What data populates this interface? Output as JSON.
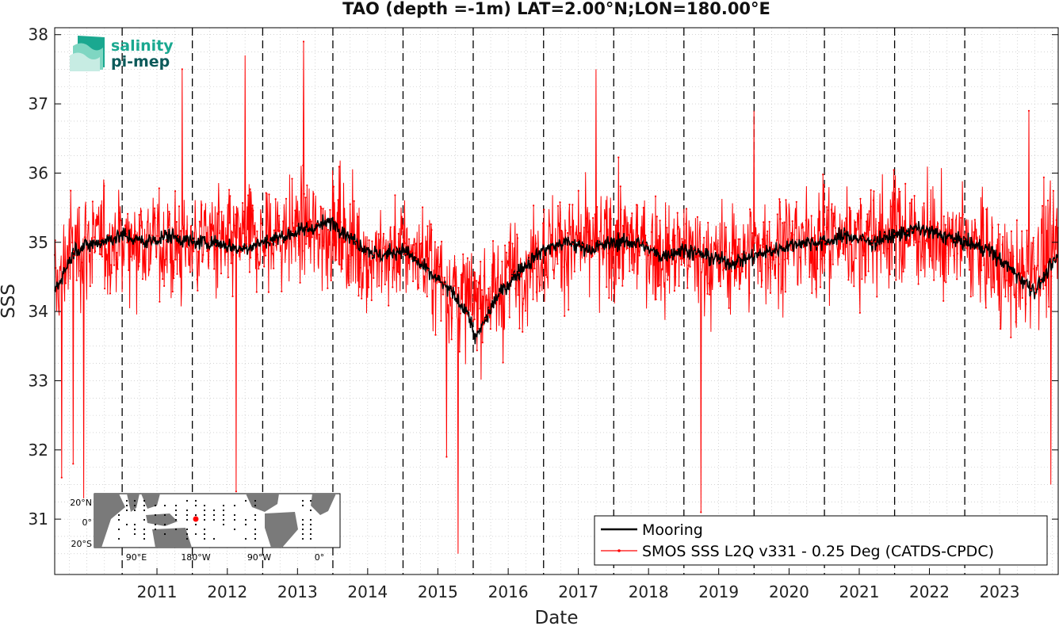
{
  "chart_data": {
    "type": "line",
    "title": "TAO (depth =-1m) LAT=2.00°N;LON=180.00°E",
    "xlabel": "Date",
    "ylabel": "SSS",
    "xlim": [
      "2010-01-15",
      "2024-05-01"
    ],
    "ylim": [
      30.2,
      38.1
    ],
    "x_tick_labels": [
      "2011",
      "2012",
      "2013",
      "2014",
      "2015",
      "2016",
      "2017",
      "2018",
      "2019",
      "2020",
      "2021",
      "2022",
      "2023"
    ],
    "y_tick_labels": [
      "31",
      "32",
      "33",
      "34",
      "35",
      "36",
      "37",
      "38"
    ],
    "year_boundary_lines": [
      "2011-01-01",
      "2012-01-01",
      "2013-01-01",
      "2014-01-01",
      "2015-01-01",
      "2016-01-01",
      "2017-01-01",
      "2018-01-01",
      "2019-01-01",
      "2020-01-01",
      "2021-01-01",
      "2022-01-01",
      "2023-01-01"
    ],
    "grid": true,
    "legend_position": "bottom-right",
    "series": [
      {
        "name": "Mooring",
        "color": "#000000",
        "x": [
          "2010-01-15",
          "2010-05-01",
          "2010-09-01",
          "2011-01-01",
          "2011-05-01",
          "2011-09-01",
          "2012-01-01",
          "2012-05-01",
          "2012-09-01",
          "2013-01-01",
          "2013-05-01",
          "2013-09-01",
          "2014-01-01",
          "2014-05-01",
          "2014-09-01",
          "2015-01-01",
          "2015-05-01",
          "2015-09-01",
          "2015-12-01",
          "2016-01-15",
          "2016-05-01",
          "2016-09-01",
          "2017-01-01",
          "2017-05-01",
          "2017-09-01",
          "2018-01-01",
          "2018-05-01",
          "2018-09-01",
          "2019-01-01",
          "2019-05-01",
          "2019-09-01",
          "2020-01-01",
          "2020-05-01",
          "2020-09-01",
          "2021-01-01",
          "2021-05-01",
          "2021-09-01",
          "2022-01-01",
          "2022-05-01",
          "2022-09-01",
          "2023-01-01",
          "2023-05-01",
          "2023-09-01",
          "2024-01-01",
          "2024-05-01"
        ],
        "y": [
          34.3,
          34.9,
          35.0,
          35.1,
          35.0,
          35.1,
          35.0,
          35.0,
          34.9,
          35.0,
          35.1,
          35.2,
          35.3,
          35.0,
          34.8,
          34.9,
          34.6,
          34.3,
          34.0,
          33.6,
          34.2,
          34.6,
          34.9,
          35.0,
          34.9,
          35.0,
          35.0,
          34.8,
          34.9,
          34.8,
          34.7,
          34.8,
          34.9,
          35.0,
          35.0,
          35.1,
          35.0,
          35.1,
          35.2,
          35.1,
          35.0,
          34.9,
          34.6,
          34.3,
          34.8
        ]
      },
      {
        "name": "SMOS SSS L2Q v331 - 0.25 Deg (CATDS-CPDC)",
        "color": "#ff0000",
        "x": [
          "2010-01-15",
          "2010-04-01",
          "2010-07-01",
          "2010-10-01",
          "2011-01-01",
          "2011-04-01",
          "2011-07-01",
          "2011-10-01",
          "2012-01-01",
          "2012-04-01",
          "2012-07-01",
          "2012-10-01",
          "2013-01-01",
          "2013-04-01",
          "2013-07-01",
          "2013-10-01",
          "2014-01-01",
          "2014-04-01",
          "2014-07-01",
          "2014-10-01",
          "2015-01-01",
          "2015-04-01",
          "2015-07-01",
          "2015-10-01",
          "2016-01-01",
          "2016-04-01",
          "2016-07-01",
          "2016-10-01",
          "2017-01-01",
          "2017-04-01",
          "2017-07-01",
          "2017-10-01",
          "2018-01-01",
          "2018-04-01",
          "2018-07-01",
          "2018-10-01",
          "2019-01-01",
          "2019-04-01",
          "2019-07-01",
          "2019-10-01",
          "2020-01-01",
          "2020-04-01",
          "2020-07-01",
          "2020-10-01",
          "2021-01-01",
          "2021-04-01",
          "2021-07-01",
          "2021-10-01",
          "2022-01-01",
          "2022-04-01",
          "2022-07-01",
          "2022-10-01",
          "2023-01-01",
          "2023-04-01",
          "2023-07-01",
          "2023-10-01",
          "2024-01-01",
          "2024-05-01"
        ],
        "y": [
          34.3,
          34.9,
          35.0,
          35.0,
          35.0,
          35.1,
          35.0,
          34.9,
          35.0,
          35.1,
          34.9,
          35.0,
          35.0,
          35.1,
          35.2,
          35.1,
          35.2,
          35.0,
          34.8,
          34.8,
          34.9,
          34.8,
          34.5,
          34.3,
          34.1,
          34.2,
          34.5,
          34.7,
          34.9,
          35.0,
          34.9,
          34.9,
          35.0,
          35.0,
          34.9,
          34.8,
          34.9,
          34.8,
          34.7,
          34.8,
          34.9,
          34.9,
          35.0,
          35.0,
          35.0,
          35.1,
          35.0,
          35.1,
          35.2,
          35.1,
          35.1,
          35.0,
          35.0,
          34.9,
          34.6,
          34.4,
          34.7,
          35.0
        ],
        "noise_sd": 0.55,
        "peak_low": [
          [
            "2010-02-20",
            31.6
          ],
          [
            "2010-04-20",
            31.8
          ],
          [
            "2010-06-15",
            31.3
          ],
          [
            "2012-08-15",
            31.4
          ],
          [
            "2015-10-15",
            30.5
          ],
          [
            "2015-08-15",
            31.9
          ],
          [
            "2019-04-01",
            31.1
          ],
          [
            "2024-03-25",
            31.5
          ]
        ],
        "peak_high": [
          [
            "2012-10-01",
            37.7
          ],
          [
            "2013-08-01",
            37.9
          ],
          [
            "2011-11-10",
            37.5
          ],
          [
            "2017-10-01",
            37.5
          ],
          [
            "2020-01-01",
            36.9
          ],
          [
            "2023-12-01",
            36.9
          ]
        ]
      }
    ]
  },
  "legend": {
    "entries": [
      "Mooring",
      "SMOS SSS L2Q v331 - 0.25 Deg (CATDS-CPDC)"
    ]
  },
  "inset_map": {
    "lat_labels": [
      "20°N",
      "0°",
      "20°S"
    ],
    "lon_labels": [
      "90°E",
      "180°W",
      "90°W",
      "0°"
    ],
    "marker_color": "#ff0000"
  },
  "logo": {
    "line1": "salinity",
    "line2": "pi-mep",
    "color1": "#1aa890",
    "color2": "#0c5a5a"
  }
}
